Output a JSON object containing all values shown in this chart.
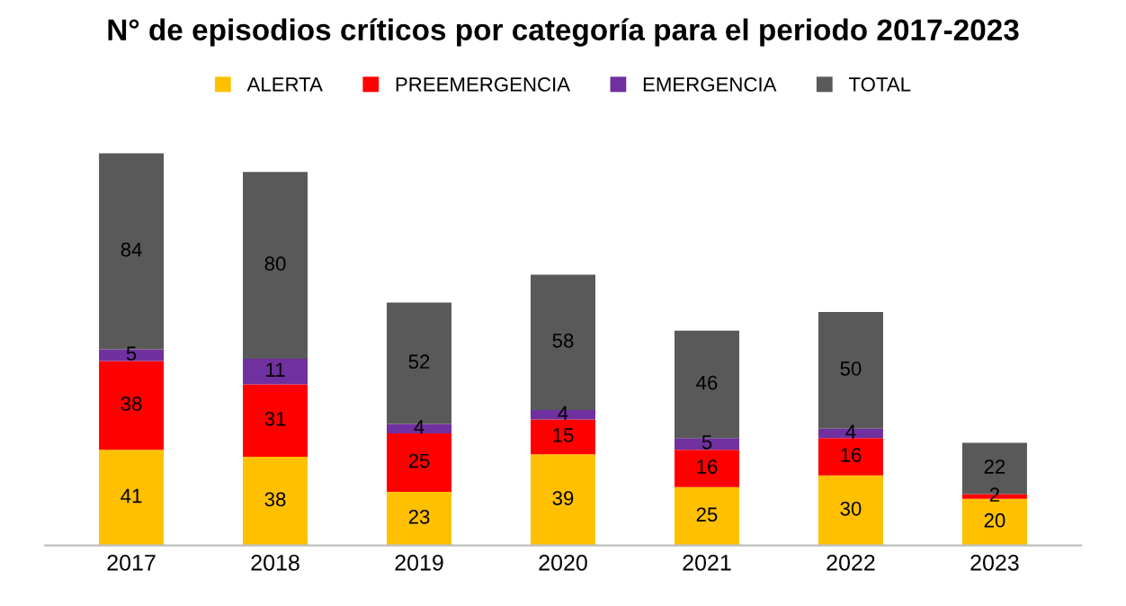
{
  "chart_data": {
    "type": "bar",
    "stacked": true,
    "title": "N° de episodios críticos por categoría para el periodo 2017-2023",
    "categories": [
      "2017",
      "2018",
      "2019",
      "2020",
      "2021",
      "2022",
      "2023"
    ],
    "series": [
      {
        "name": "ALERTA",
        "color": "#ffc000",
        "values": [
          41,
          38,
          23,
          39,
          25,
          30,
          20
        ],
        "value_labels": [
          "41",
          "38",
          "23",
          "39",
          "25",
          "30",
          "20"
        ]
      },
      {
        "name": "PREEMERGENCIA",
        "color": "#ff0000",
        "values": [
          38,
          31,
          25,
          15,
          16,
          16,
          2
        ],
        "value_labels": [
          "38",
          "31",
          "25",
          "15",
          "16",
          "16",
          "2"
        ]
      },
      {
        "name": "EMERGENCIA",
        "color": "#7030a0",
        "values": [
          5,
          11,
          4,
          4,
          5,
          4,
          0
        ],
        "value_labels": [
          "5",
          "11",
          "4",
          "4",
          "5",
          "4",
          null
        ]
      },
      {
        "name": "TOTAL",
        "color": "#595959",
        "values": [
          84,
          80,
          52,
          58,
          46,
          50,
          22
        ],
        "value_labels": [
          "84",
          "80",
          "52",
          "58",
          "46",
          "50",
          "22"
        ]
      }
    ],
    "legend": "top",
    "grid": false,
    "tick_labels": "x"
  }
}
